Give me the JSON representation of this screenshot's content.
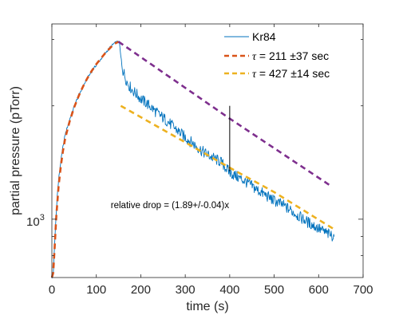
{
  "chart_data": {
    "type": "line",
    "xlabel": "time (s)",
    "ylabel": "partial pressure (pTorr)",
    "xlim": [
      0,
      700
    ],
    "ylim": [
      700,
      3300
    ],
    "yscale": "log",
    "x_ticks": [
      0,
      100,
      200,
      300,
      400,
      500,
      600,
      700
    ],
    "y_tick_label": {
      "base": "10",
      "exp": "3",
      "value": 1000
    },
    "grid": false,
    "legend_position": "top-right",
    "series": [
      {
        "name": "Kr84",
        "style": "solid",
        "color": "#0072BD",
        "points": [
          [
            0,
            700
          ],
          [
            3,
            710
          ],
          [
            5,
            800
          ],
          [
            8,
            950
          ],
          [
            12,
            1150
          ],
          [
            16,
            1300
          ],
          [
            20,
            1420
          ],
          [
            25,
            1560
          ],
          [
            30,
            1680
          ],
          [
            40,
            1840
          ],
          [
            50,
            1990
          ],
          [
            60,
            2130
          ],
          [
            70,
            2250
          ],
          [
            80,
            2370
          ],
          [
            90,
            2470
          ],
          [
            100,
            2570
          ],
          [
            110,
            2660
          ],
          [
            120,
            2760
          ],
          [
            130,
            2850
          ],
          [
            140,
            2930
          ],
          [
            148,
            2960
          ],
          [
            152,
            2940
          ],
          [
            155,
            2700
          ],
          [
            160,
            2480
          ],
          [
            170,
            2300
          ],
          [
            180,
            2210
          ],
          [
            190,
            2150
          ],
          [
            200,
            2090
          ],
          [
            220,
            2000
          ],
          [
            240,
            1900
          ],
          [
            260,
            1820
          ],
          [
            280,
            1730
          ],
          [
            300,
            1650
          ],
          [
            320,
            1580
          ],
          [
            340,
            1510
          ],
          [
            360,
            1460
          ],
          [
            380,
            1420
          ],
          [
            400,
            1330
          ],
          [
            420,
            1290
          ],
          [
            440,
            1250
          ],
          [
            460,
            1200
          ],
          [
            480,
            1160
          ],
          [
            500,
            1120
          ],
          [
            520,
            1090
          ],
          [
            540,
            1050
          ],
          [
            560,
            1010
          ],
          [
            580,
            975
          ],
          [
            600,
            945
          ],
          [
            620,
            915
          ],
          [
            635,
            900
          ]
        ]
      },
      {
        "name": "τ = 211 ±37 sec",
        "tau_value": "211",
        "tau_unc": "±37 sec",
        "style": "dashed",
        "color": "#D95319",
        "points": [
          [
            0,
            700
          ],
          [
            3,
            720
          ],
          [
            6,
            830
          ],
          [
            10,
            1020
          ],
          [
            15,
            1220
          ],
          [
            20,
            1380
          ],
          [
            25,
            1520
          ],
          [
            30,
            1640
          ],
          [
            40,
            1820
          ],
          [
            50,
            1980
          ],
          [
            60,
            2120
          ],
          [
            70,
            2250
          ],
          [
            80,
            2370
          ],
          [
            90,
            2480
          ],
          [
            100,
            2580
          ],
          [
            110,
            2670
          ],
          [
            120,
            2760
          ],
          [
            130,
            2840
          ],
          [
            140,
            2920
          ],
          [
            150,
            2960
          ]
        ]
      },
      {
        "name": "τ = 427 ±14 sec",
        "tau_value": "427",
        "tau_unc": "±14 sec",
        "style": "dashed",
        "color": "#EDB120",
        "points": [
          [
            155,
            2000
          ],
          [
            300,
            1600
          ],
          [
            400,
            1370
          ],
          [
            500,
            1180
          ],
          [
            635,
            940
          ]
        ]
      },
      {
        "name": "",
        "style": "dashed",
        "color": "#7E2F8E",
        "points": [
          [
            150,
            2960
          ],
          [
            400,
            1850
          ],
          [
            630,
            1220
          ]
        ]
      }
    ],
    "annotations": [
      {
        "text": "relative drop = (1.89+/-0.04)x",
        "x": 75,
        "y": 1090
      },
      {
        "type": "vline",
        "x": 400,
        "y1": 1340,
        "y2": 2000,
        "color": "#000000"
      }
    ]
  }
}
